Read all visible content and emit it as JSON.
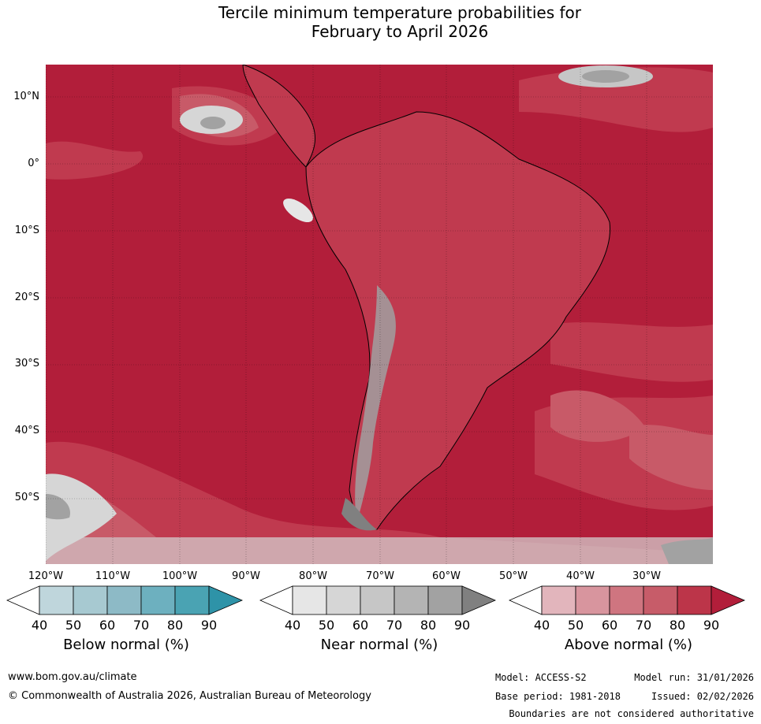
{
  "title": {
    "line1": "Tercile minimum temperature probabilities for",
    "line2": "February to April 2026"
  },
  "map": {
    "lat_labels": [
      "10°N",
      "0°",
      "10°S",
      "20°S",
      "30°S",
      "40°S",
      "50°S"
    ],
    "lon_labels": [
      "120°W",
      "110°W",
      "100°W",
      "90°W",
      "80°W",
      "70°W",
      "60°W",
      "50°W",
      "40°W",
      "30°W"
    ],
    "colors": {
      "above_90": "#b21e3a",
      "above_80": "#c03a4f",
      "above_70": "#c85a68",
      "land_near": "#a0a0a0",
      "coastline": "#000000",
      "boundary": "#808080"
    }
  },
  "legend": {
    "below": {
      "title": "Below normal (%)",
      "ticks": [
        "40",
        "50",
        "60",
        "70",
        "80",
        "90"
      ],
      "colors": [
        "#ffffff",
        "#bfd6dc",
        "#a7c9d1",
        "#8dbac6",
        "#6db0bf",
        "#4aa3b3",
        "#2e93a8"
      ]
    },
    "near": {
      "title": "Near normal (%)",
      "ticks": [
        "40",
        "50",
        "60",
        "70",
        "80",
        "90"
      ],
      "colors": [
        "#ffffff",
        "#e6e6e6",
        "#d6d6d6",
        "#c6c6c6",
        "#b4b4b4",
        "#a2a2a2",
        "#808080"
      ]
    },
    "above": {
      "title": "Above normal (%)",
      "ticks": [
        "40",
        "50",
        "60",
        "70",
        "80",
        "90"
      ],
      "colors": [
        "#ffffff",
        "#e2b5bc",
        "#d8959e",
        "#cf7580",
        "#c75c69",
        "#bc3549",
        "#b21e3a"
      ]
    }
  },
  "footer": {
    "website": "www.bom.gov.au/climate",
    "copyright": "© Commonwealth of Australia 2026, Australian Bureau of Meteorology",
    "model": "Model: ACCESS-S2",
    "model_run": "Model run: 31/01/2026",
    "base_period": "Base period: 1981-2018",
    "issued": "Issued: 02/02/2026",
    "boundaries_note": "Boundaries are not considered authoritative"
  }
}
